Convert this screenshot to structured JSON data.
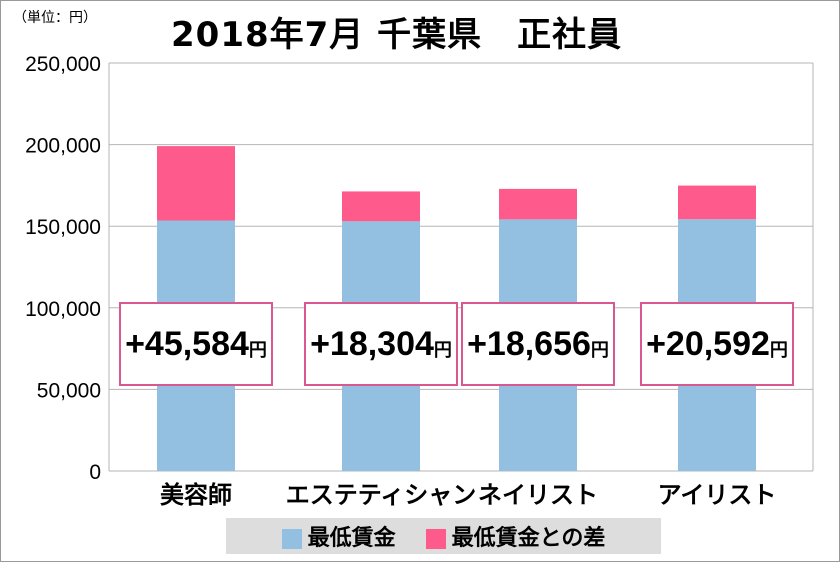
{
  "chart_data": {
    "type": "bar",
    "stacked": true,
    "title": "2018年7月 千葉県　正社員",
    "unit_label": "（単位：円）",
    "categories": [
      "美容師",
      "エステティシャン",
      "ネイリスト",
      "アイリスト"
    ],
    "series": [
      {
        "name": "最低賃金",
        "color": "#93bfe0",
        "values": [
          153500,
          153000,
          154200,
          154300
        ]
      },
      {
        "name": "最低賃金との差",
        "color": "#ff5a8c",
        "values": [
          45584,
          18304,
          18656,
          20592
        ]
      }
    ],
    "annotations": [
      "+45,584",
      "+18,304",
      "+18,656",
      "+20,592"
    ],
    "annotation_unit": "円",
    "ylim": [
      0,
      250000
    ],
    "yticks": [
      "0",
      "50,000",
      "100,000",
      "150,000",
      "200,000",
      "250,000"
    ],
    "grid": true,
    "legend": "bottom"
  }
}
